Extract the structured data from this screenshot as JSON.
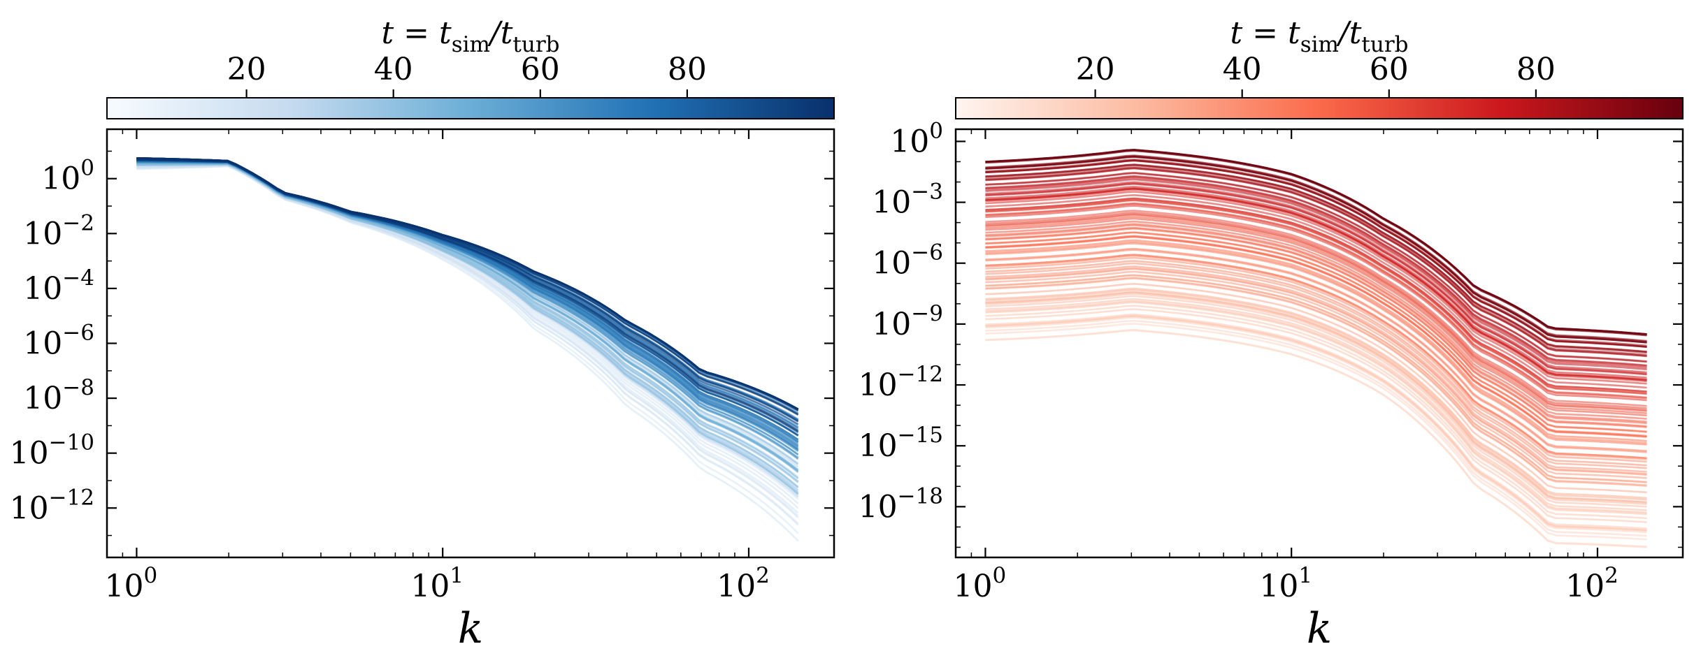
{
  "chart_data": [
    {
      "type": "line",
      "panel": "left",
      "colormap": "Blues",
      "colorbar": {
        "label_parts": [
          "t = t",
          "sim",
          "/t",
          "turb"
        ],
        "ticks": [
          20,
          40,
          60,
          80
        ],
        "range": [
          1,
          100
        ],
        "colors": [
          "#f7fbff",
          "#c6dbef",
          "#6baed6",
          "#2171b5",
          "#08306b"
        ]
      },
      "xlabel": "k",
      "xscale": "log",
      "yscale": "log",
      "xlim": [
        0.8,
        190
      ],
      "xticks": [
        {
          "base": "10",
          "exp": "0",
          "value": 1
        },
        {
          "base": "10",
          "exp": "1",
          "value": 10
        },
        {
          "base": "10",
          "exp": "2",
          "value": 100
        }
      ],
      "ylim_log10": [
        -13.8,
        1.8
      ],
      "yticks": [
        {
          "base": "10",
          "exp": "0",
          "log": 0
        },
        {
          "base": "10",
          "exp": "−2",
          "log": -2
        },
        {
          "base": "10",
          "exp": "−4",
          "log": -4
        },
        {
          "base": "10",
          "exp": "−6",
          "log": -6
        },
        {
          "base": "10",
          "exp": "−8",
          "log": -8
        },
        {
          "base": "10",
          "exp": "−10",
          "log": -10
        },
        {
          "base": "10",
          "exp": "−12",
          "log": -12
        }
      ],
      "grid": false,
      "n_curves": 100,
      "k_range": [
        1,
        145
      ],
      "envelope_log10y": {
        "k": [
          1,
          2,
          3,
          5,
          10,
          20,
          40,
          70,
          145
        ],
        "upper": [
          0.75,
          0.65,
          -0.5,
          -1.2,
          -2.05,
          -3.4,
          -5.2,
          -7.0,
          -8.4
        ],
        "lower": [
          0.35,
          0.45,
          -0.75,
          -1.6,
          -2.95,
          -5.5,
          -8.3,
          -10.6,
          -13.2
        ]
      }
    },
    {
      "type": "line",
      "panel": "right",
      "colormap": "Reds",
      "colorbar": {
        "label_parts": [
          "t = t",
          "sim",
          "/t",
          "turb"
        ],
        "ticks": [
          20,
          40,
          60,
          80
        ],
        "range": [
          1,
          100
        ],
        "colors": [
          "#fff5f0",
          "#fcbba1",
          "#fb6a4a",
          "#cb181d",
          "#67000d"
        ]
      },
      "xlabel": "k",
      "xscale": "log",
      "yscale": "log",
      "xlim": [
        0.8,
        190
      ],
      "xticks": [
        {
          "base": "10",
          "exp": "0",
          "value": 1
        },
        {
          "base": "10",
          "exp": "1",
          "value": 10
        },
        {
          "base": "10",
          "exp": "2",
          "value": 100
        }
      ],
      "ylim_log10": [
        -20.5,
        0.6
      ],
      "yticks": [
        {
          "base": "10",
          "exp": "0",
          "log": 0
        },
        {
          "base": "10",
          "exp": "−3",
          "log": -3
        },
        {
          "base": "10",
          "exp": "−6",
          "log": -6
        },
        {
          "base": "10",
          "exp": "−9",
          "log": -9
        },
        {
          "base": "10",
          "exp": "−12",
          "log": -12
        },
        {
          "base": "10",
          "exp": "−15",
          "log": -15
        },
        {
          "base": "10",
          "exp": "−18",
          "log": -18
        }
      ],
      "grid": false,
      "n_curves": 100,
      "k_range": [
        1,
        145
      ],
      "envelope_log10y": {
        "k": [
          1,
          3,
          10,
          20,
          40,
          70,
          145
        ],
        "upper_t_max": [
          -1.0,
          -0.4,
          -1.6,
          -3.8,
          -7.2,
          -9.2,
          -9.5
        ],
        "lower_t_min": [
          -9.8,
          -9.3,
          -10.5,
          -12.5,
          -17.0,
          -19.8,
          -20.0
        ]
      }
    }
  ]
}
